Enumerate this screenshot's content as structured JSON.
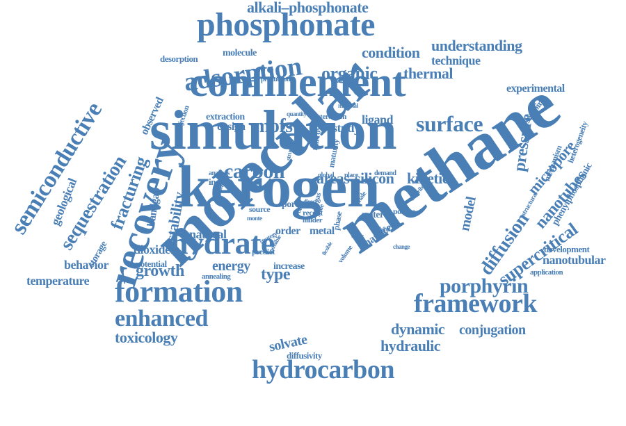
{
  "wordcloud": {
    "color": "#4a7fb6",
    "words": [
      "molecular",
      "methane",
      "kerogen",
      "simulation",
      "confinement",
      "recovery",
      "hydrate",
      "phosphonate",
      "formation",
      "framework",
      "hydrocarbon",
      "adsorption",
      "semiconductive",
      "sequestration",
      "carbon",
      "surface",
      "enhanced",
      "porphyrin",
      "alkali–phosphonate",
      "fracturing",
      "diffusion",
      "supercritical",
      "nanotubes",
      "pressure",
      "micropore",
      "mofs",
      "organic",
      "thermal",
      "condition",
      "understanding",
      "technique",
      "growth",
      "dioxide",
      "behavior",
      "temperature",
      "toxicology",
      "energy",
      "type",
      "dynamic",
      "conjugation",
      "hydraulic",
      "solvate",
      "natural",
      "stability",
      "bandgap",
      "geological",
      "storage",
      "kinetic",
      "silicon",
      "areas",
      "experimental",
      "model",
      "nanotubular",
      "phenylphosphonic",
      "development",
      "study",
      "design",
      "ligand",
      "extraction",
      "observed",
      "desorption",
      "molecule",
      "production",
      "diffusivity",
      "increase",
      "potential",
      "annealing",
      "order",
      "metal",
      "pore",
      "recent",
      "water",
      "porous",
      "matrices",
      "predict",
      "source",
      "insight",
      "enable",
      "narrow",
      "maturity",
      "structure",
      "quantity",
      "interaction",
      "material",
      "extended",
      "injection",
      "reservoir",
      "mechanism",
      "heterogeneity",
      "application",
      "exhibit",
      "change",
      "volume",
      "demand",
      "contribute",
      "global",
      "place",
      "phase",
      "shale",
      "gas",
      "better",
      "analysis",
      "direct",
      "milder",
      "strategy",
      "flexible",
      "monte",
      "bulk",
      "scale",
      "possible",
      "structural"
    ]
  }
}
